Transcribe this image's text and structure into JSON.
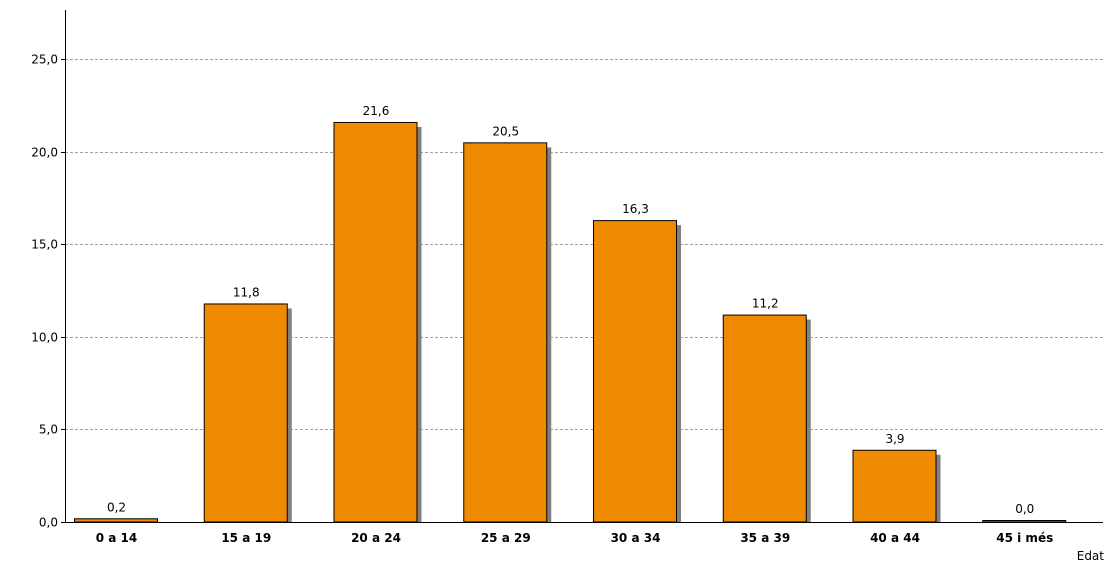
{
  "chart_data": {
    "type": "bar",
    "categories": [
      "0 a 14",
      "15 a 19",
      "20 a 24",
      "25 a 29",
      "30 a 34",
      "35 a 39",
      "40 a 44",
      "45 i més"
    ],
    "values": [
      0.2,
      11.8,
      21.6,
      20.5,
      16.3,
      11.2,
      3.9,
      0.0
    ],
    "value_labels": [
      "0,2",
      "11,8",
      "21,6",
      "20,5",
      "16,3",
      "11,2",
      "3,9",
      "0,0"
    ],
    "yticks": [
      0,
      5,
      10,
      15,
      20,
      25
    ],
    "ytick_labels": [
      "0,0",
      "5,0",
      "10,0",
      "15,0",
      "20,0",
      "25,0"
    ],
    "ylim": [
      0,
      27.5
    ],
    "xlabel": "Edat",
    "ylabel": "",
    "title": "",
    "grid": true,
    "bar_color": "#f08a00",
    "shadow_color": "#808080",
    "grid_color": "#a0a0a0"
  }
}
